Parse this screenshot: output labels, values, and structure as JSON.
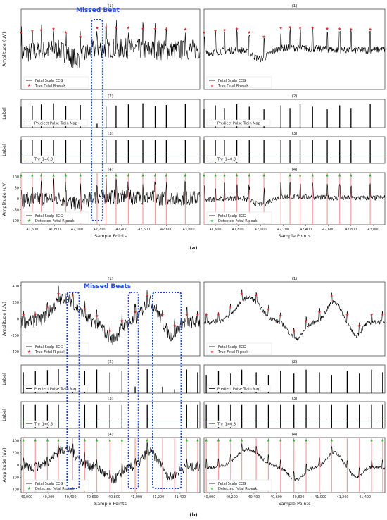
{
  "figure": {
    "caption_a": "(a)",
    "caption_b": "(b)",
    "xlabel": "Sample Points",
    "annotation_a": "Missed Beat",
    "annotation_b": "Missed Beats",
    "colors": {
      "ecg": "#000000",
      "true_peak": "#d62728",
      "detected_peak": "#2ca02c",
      "threshold": "#2ca02c",
      "peak_line": "#f2a0a0",
      "missed_box": "#1f3fd6",
      "annotation_text": "#2b50e0"
    }
  },
  "chart_data": [
    {
      "id": "a",
      "x_range": [
        41500,
        43100
      ],
      "ticks": [
        41600,
        41800,
        42000,
        42200,
        42400,
        42600,
        42800,
        43000
      ],
      "tick_labels": [
        "41,600",
        "41,800",
        "42,000",
        "42,200",
        "42,400",
        "42,600",
        "42,800",
        "43,000"
      ],
      "true_peaks": [
        41500,
        41600,
        41680,
        41790,
        41900,
        42030,
        42180,
        42260,
        42350,
        42460,
        42590,
        42700,
        42800,
        42970
      ],
      "detected_peaks": [
        41500,
        41600,
        41680,
        41790,
        41900,
        42030,
        42260,
        42350,
        42460,
        42590,
        42700,
        42800,
        42970
      ],
      "missed": [
        [
          42130,
          42230
        ]
      ],
      "panels": [
        {
          "title": "(1)",
          "type": "line",
          "ylabel": "Amplitude (uV)",
          "legend": [
            "Fetal Scalp ECG",
            "True Fetal R-peak"
          ]
        },
        {
          "title": "(2)",
          "type": "bar",
          "ylabel": "Label",
          "legend": [
            "Prediect Pulse Train Map"
          ]
        },
        {
          "title": "(3)",
          "type": "bar",
          "ylabel": "Label",
          "legend": [
            "Thr_1=0.3"
          ],
          "threshold": 0.3
        },
        {
          "title": "(4)",
          "type": "line",
          "ylabel": "Amplitude (uV)",
          "legend": [
            "Fetal Scalp ECG",
            "Detected Fetal R-peak"
          ],
          "ylim": [
            -120,
            120
          ],
          "yticks": [
            100,
            50,
            0,
            -50,
            -100
          ]
        }
      ]
    },
    {
      "id": "b",
      "x_range": [
        39950,
        41580
      ],
      "ticks": [
        40000,
        40200,
        40400,
        40600,
        40800,
        41000,
        41200,
        41400
      ],
      "tick_labels": [
        "40,000",
        "40,200",
        "40,400",
        "40,600",
        "40,800",
        "41,000",
        "41,200",
        "41,400"
      ],
      "true_peaks": [
        39970,
        40080,
        40190,
        40290,
        40420,
        40530,
        40640,
        40760,
        40870,
        40990,
        41100,
        41240,
        41350,
        41460,
        41560
      ],
      "detected_peaks": [
        39970,
        40080,
        40190,
        40290,
        40530,
        40640,
        40760,
        40870,
        41100,
        41460,
        41560
      ],
      "missed": [
        [
          40370,
          40480
        ],
        [
          40930,
          41020
        ],
        [
          41150,
          41410
        ]
      ],
      "panels": [
        {
          "title": "(1)",
          "type": "line",
          "ylabel": "Amplitude (uV)",
          "legend": [
            "Fetal Scalp ECG",
            "True Fetal R-peak"
          ],
          "ylim": [
            -450,
            450
          ],
          "yticks": [
            400,
            200,
            0,
            -200,
            -400
          ]
        },
        {
          "title": "(2)",
          "type": "bar",
          "ylabel": "Label",
          "legend": [
            "Prediect Pulse Train Map"
          ]
        },
        {
          "title": "(3)",
          "type": "bar",
          "ylabel": "Label",
          "legend": [
            "Thr_1=0.3"
          ],
          "threshold": 0.3
        },
        {
          "title": "(4)",
          "type": "line",
          "ylabel": "Amplitude (uV)",
          "legend": [
            "Fetal Scalp ECG",
            "Detected Fetal R-peak"
          ],
          "ylim": [
            -450,
            450
          ],
          "yticks": [
            400,
            200,
            0,
            -200,
            -400
          ]
        }
      ]
    }
  ]
}
